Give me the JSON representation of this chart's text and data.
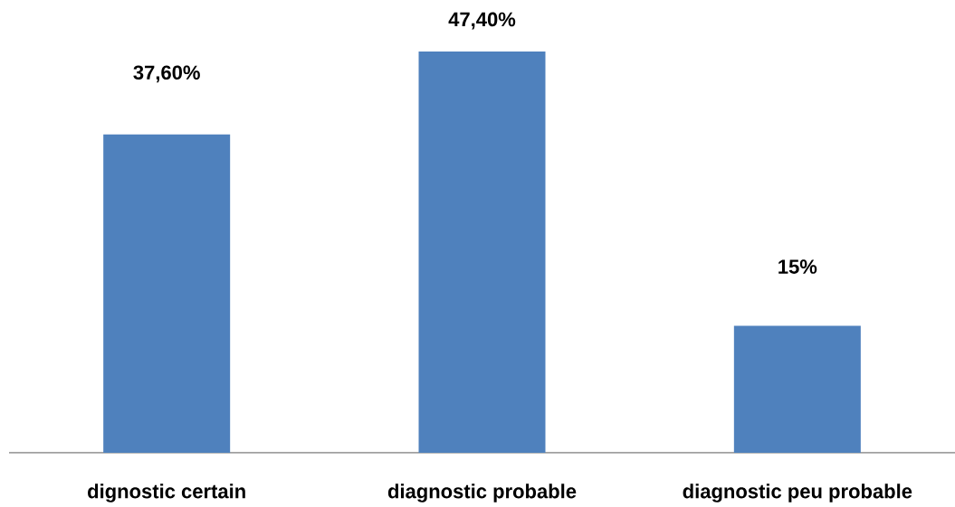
{
  "chart_data": {
    "type": "bar",
    "categories": [
      "dignostic certain",
      "diagnostic probable",
      "diagnostic peu probable"
    ],
    "values": [
      37.6,
      47.4,
      15
    ],
    "value_labels": [
      "37,60%",
      "47,40%",
      "15%"
    ],
    "color": "#4f81bd"
  }
}
